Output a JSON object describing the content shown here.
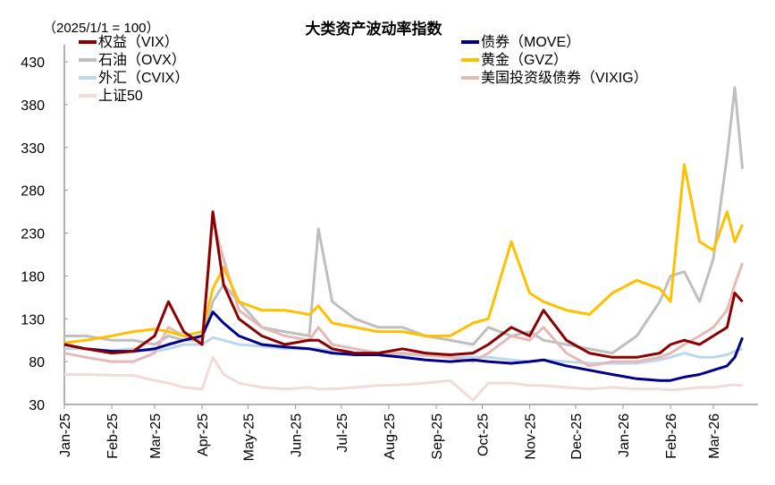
{
  "chart_data": {
    "type": "line",
    "title": "大类资产波动率指数",
    "unit_label": "（2025/1/1 = 100）",
    "xlabel": "",
    "ylabel": "",
    "ylim": [
      30,
      450
    ],
    "yticks": [
      30,
      80,
      130,
      180,
      230,
      280,
      330,
      380,
      430
    ],
    "xticks": [
      {
        "date": "2025-01-01",
        "label": "Jan-25"
      },
      {
        "date": "2025-02-01",
        "label": "Feb-25"
      },
      {
        "date": "2025-03-01",
        "label": "Mar-25"
      },
      {
        "date": "2025-04-01",
        "label": "Apr-25"
      },
      {
        "date": "2025-05-01",
        "label": "May-25"
      },
      {
        "date": "2025-06-01",
        "label": "Jun-25"
      },
      {
        "date": "2025-07-01",
        "label": "Jul-25"
      },
      {
        "date": "2025-08-01",
        "label": "Aug-25"
      },
      {
        "date": "2025-09-01",
        "label": "Sep-25"
      },
      {
        "date": "2025-10-01",
        "label": "Oct-25"
      },
      {
        "date": "2025-11-01",
        "label": "Nov-25"
      },
      {
        "date": "2025-12-01",
        "label": "Dec-25"
      },
      {
        "date": "2026-01-01",
        "label": "Jan-26"
      },
      {
        "date": "2026-02-01",
        "label": "Feb-26"
      },
      {
        "date": "2026-03-01",
        "label": "Mar-26"
      }
    ],
    "grid": false,
    "legend_placement": "top",
    "x": [
      "2025-01-01",
      "2025-01-15",
      "2025-02-01",
      "2025-02-15",
      "2025-03-01",
      "2025-03-10",
      "2025-03-20",
      "2025-04-01",
      "2025-04-08",
      "2025-04-15",
      "2025-04-25",
      "2025-05-10",
      "2025-05-25",
      "2025-06-10",
      "2025-06-16",
      "2025-06-25",
      "2025-07-10",
      "2025-07-25",
      "2025-08-10",
      "2025-08-25",
      "2025-09-10",
      "2025-09-25",
      "2025-10-05",
      "2025-10-20",
      "2025-11-01",
      "2025-11-10",
      "2025-11-25",
      "2025-12-10",
      "2025-12-25",
      "2026-01-10",
      "2026-01-25",
      "2026-02-01",
      "2026-02-10",
      "2026-02-20",
      "2026-03-01",
      "2026-03-10",
      "2026-03-15",
      "2026-03-20"
    ],
    "series": [
      {
        "name": "上证50",
        "color": "#f2dcdb",
        "values": [
          65,
          65,
          64,
          64,
          58,
          55,
          50,
          48,
          85,
          65,
          55,
          50,
          48,
          50,
          48,
          48,
          50,
          52,
          53,
          55,
          58,
          35,
          55,
          55,
          52,
          52,
          50,
          48,
          50,
          48,
          48,
          47,
          48,
          50,
          50,
          52,
          53,
          52
        ]
      },
      {
        "name": "外汇（CVIX）",
        "color": "#bdd7ee",
        "values": [
          95,
          95,
          93,
          95,
          92,
          95,
          100,
          100,
          108,
          105,
          100,
          98,
          95,
          95,
          95,
          92,
          90,
          90,
          88,
          87,
          85,
          85,
          85,
          82,
          80,
          82,
          80,
          78,
          78,
          78,
          82,
          85,
          90,
          85,
          85,
          88,
          92,
          95
        ]
      },
      {
        "name": "石油（OVX）",
        "color": "#bfbfbf",
        "values": [
          110,
          110,
          105,
          105,
          100,
          110,
          105,
          105,
          150,
          170,
          150,
          120,
          115,
          110,
          235,
          150,
          130,
          120,
          120,
          110,
          105,
          100,
          120,
          110,
          115,
          105,
          100,
          95,
          90,
          110,
          150,
          180,
          185,
          150,
          200,
          320,
          400,
          305
        ]
      },
      {
        "name": "美国投资级债券（VIXIG）",
        "color": "#e6b8b7",
        "values": [
          90,
          85,
          80,
          80,
          90,
          120,
          110,
          105,
          245,
          200,
          140,
          120,
          110,
          105,
          120,
          100,
          95,
          90,
          90,
          88,
          85,
          80,
          90,
          110,
          105,
          120,
          90,
          75,
          80,
          80,
          85,
          90,
          100,
          110,
          120,
          140,
          170,
          195
        ]
      },
      {
        "name": "黄金（GVZ）",
        "color": "#ffc000",
        "values": [
          102,
          105,
          110,
          115,
          118,
          115,
          110,
          115,
          165,
          190,
          150,
          140,
          140,
          135,
          145,
          125,
          120,
          115,
          115,
          110,
          110,
          125,
          130,
          220,
          160,
          150,
          140,
          135,
          160,
          175,
          165,
          150,
          310,
          220,
          210,
          255,
          220,
          240
        ]
      },
      {
        "name": "债券（MOVE）",
        "color": "#00008b",
        "values": [
          100,
          95,
          92,
          92,
          95,
          100,
          105,
          110,
          138,
          125,
          110,
          100,
          97,
          95,
          93,
          90,
          88,
          88,
          85,
          82,
          80,
          82,
          80,
          78,
          80,
          82,
          75,
          70,
          65,
          60,
          58,
          58,
          62,
          65,
          70,
          75,
          85,
          108
        ]
      },
      {
        "name": "权益（VIX）",
        "color": "#8b0000",
        "values": [
          100,
          95,
          90,
          92,
          110,
          150,
          115,
          100,
          255,
          170,
          130,
          110,
          100,
          105,
          105,
          95,
          90,
          90,
          95,
          90,
          88,
          90,
          100,
          120,
          110,
          140,
          105,
          90,
          85,
          85,
          90,
          100,
          105,
          100,
          110,
          120,
          160,
          150
        ]
      }
    ],
    "legend": [
      {
        "name": "权益（VIX）",
        "color": "#8b0000"
      },
      {
        "name": "债券（MOVE）",
        "color": "#00008b"
      },
      {
        "name": "石油（OVX）",
        "color": "#bfbfbf"
      },
      {
        "name": "黄金（GVZ）",
        "color": "#ffc000"
      },
      {
        "name": "外汇（CVIX）",
        "color": "#bdd7ee"
      },
      {
        "name": "美国投资级债券（VIXIG）",
        "color": "#e6b8b7"
      },
      {
        "name": "上证50",
        "color": "#f2dcdb"
      }
    ]
  }
}
